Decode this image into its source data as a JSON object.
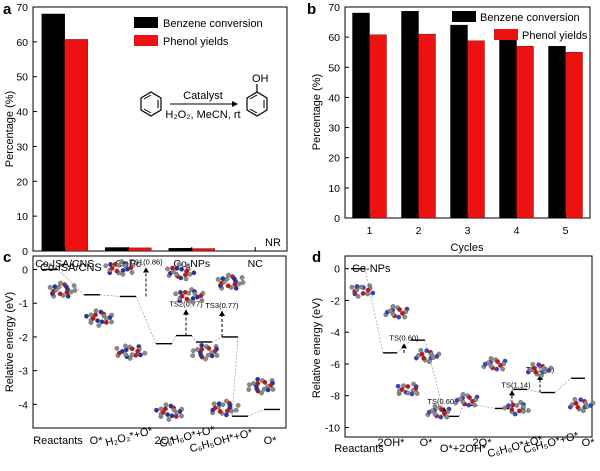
{
  "chart_data": [
    {
      "panel": "a",
      "type": "bar",
      "ylabel": "Percentage (%)",
      "ylim": [
        0,
        70
      ],
      "yticks": [
        0,
        10,
        20,
        30,
        40,
        50,
        60,
        70
      ],
      "categories": [
        "Co-ISA/CNS",
        "CoPc",
        "Co-NPs",
        "NC"
      ],
      "series": [
        {
          "name": "Benzene conversion",
          "values": [
            68,
            1,
            0.8,
            0
          ]
        },
        {
          "name": "Phenol yields",
          "values": [
            60.7,
            0.9,
            0.7,
            0
          ]
        }
      ],
      "annotations": [
        "NR"
      ],
      "reaction": {
        "product_label": "OH",
        "catalyst_label": "Catalyst",
        "conditions": "H₂O₂, MeCN, rt"
      },
      "legend_position": "top-right",
      "colors": {
        "Benzene conversion": "#000000",
        "Phenol yields": "#ee1111"
      }
    },
    {
      "panel": "b",
      "type": "bar",
      "xlabel": "Cycles",
      "ylabel": "Percentage (%)",
      "ylim": [
        0,
        70
      ],
      "yticks": [
        0,
        10,
        20,
        30,
        40,
        50,
        60,
        70
      ],
      "categories": [
        "1",
        "2",
        "3",
        "4",
        "5"
      ],
      "series": [
        {
          "name": "Benzene conversion",
          "values": [
            68,
            68.6,
            64,
            62,
            57
          ]
        },
        {
          "name": "Phenol yields",
          "values": [
            60.8,
            61,
            58.8,
            57,
            55
          ]
        }
      ],
      "legend_position": "top-right",
      "colors": {
        "Benzene conversion": "#000000",
        "Phenol yields": "#ee1111"
      }
    },
    {
      "panel": "c",
      "type": "line",
      "title": "Co-ISA/CNS",
      "ylabel": "Relative energy (eV)",
      "ylim": [
        -4.7,
        0.4
      ],
      "yticks": [
        0,
        -1,
        -2,
        -3,
        -4
      ],
      "x_labels": [
        "Reactants",
        "O*",
        "H₂O₂*+O*",
        "2O*",
        "C₆H₆O*+O*",
        "C₆H₅OH*+O*",
        "O*"
      ],
      "levels": [
        {
          "x": 0,
          "y": 0
        },
        {
          "x": 1,
          "y": -0.75
        },
        {
          "x": 2,
          "y": -0.8
        },
        {
          "x": 3,
          "y": -2.2
        },
        {
          "x": 4,
          "y": -1.96
        },
        {
          "x": 5,
          "y": -2.15
        },
        {
          "x": 6,
          "y": -2.0
        },
        {
          "x": 7,
          "y": -4.35
        },
        {
          "x": 8,
          "y": -4.15
        }
      ],
      "transition_states": [
        {
          "label": "TS1(0.86)",
          "value": 0.86
        },
        {
          "label": "TS2(0.77)",
          "value": 0.77
        },
        {
          "label": "TS3(0.77)",
          "value": 0.77
        }
      ]
    },
    {
      "panel": "d",
      "type": "line",
      "title": "Co-NPs",
      "ylabel": "Relative energy (eV)",
      "ylim": [
        -10.6,
        0.8
      ],
      "yticks": [
        0,
        -2,
        -4,
        -6,
        -8,
        -10
      ],
      "x_labels": [
        "Reactants",
        "2OH*",
        "O*",
        "O*+2OH*",
        "2O*",
        "C₆H₆O*+O*",
        "C₆H₅O*+O*",
        "O*"
      ],
      "levels": [
        {
          "x": 0,
          "y": 0
        },
        {
          "x": 1,
          "y": -5.3
        },
        {
          "x": 2,
          "y": -4.5
        },
        {
          "x": 3,
          "y": -9.3
        },
        {
          "x": 4,
          "y": -8.6
        },
        {
          "x": 5,
          "y": -8.8
        },
        {
          "x": 6,
          "y": -7.6
        },
        {
          "x": 7,
          "y": -7.8
        },
        {
          "x": 8,
          "y": -6.9
        }
      ],
      "transition_states": [
        {
          "label": "TS(0.60)",
          "value": 0.6
        },
        {
          "label": "TS(0.60)",
          "value": 0.6
        },
        {
          "label": "TS(1.14)",
          "value": 1.14
        },
        {
          "label": "TS(1.11)",
          "value": 1.11
        }
      ]
    }
  ]
}
